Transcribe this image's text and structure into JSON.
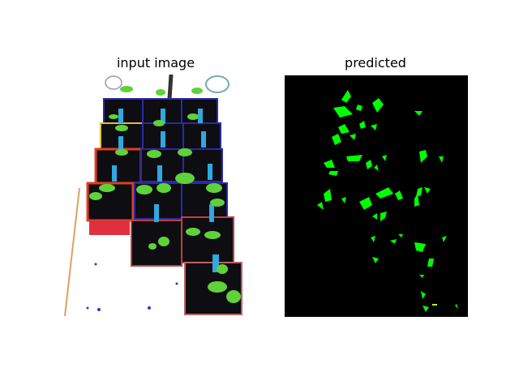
{
  "figure": {
    "panels": [
      {
        "title": "input image"
      },
      {
        "title": "predicted"
      }
    ]
  },
  "colors": {
    "background": "#ffffff",
    "mask_background": "#000000",
    "mask_foreground": "#00ff00",
    "leaf_green": "#5fd23a",
    "pot_black": "#101010"
  }
}
